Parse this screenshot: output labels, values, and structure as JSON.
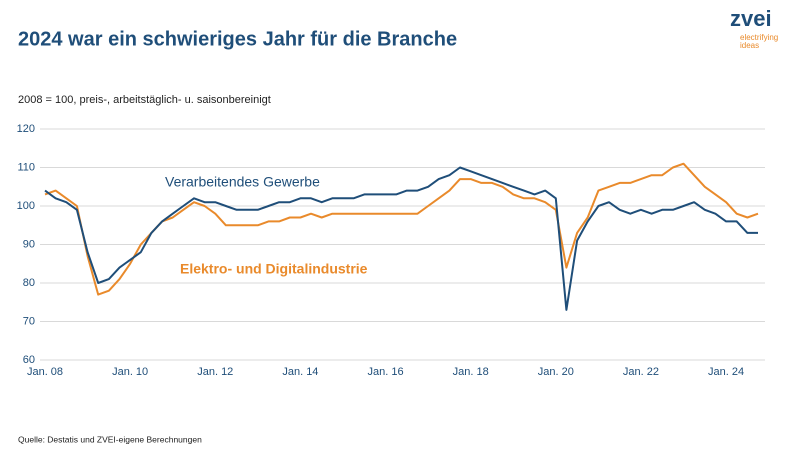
{
  "logo": {
    "name": "zvei",
    "tagline": [
      "electrifying",
      "ideas"
    ]
  },
  "chart_data": {
    "type": "line",
    "title": "2024 war ein schwieriges Jahr für die Branche",
    "subtitle": "2008 = 100, preis-, arbeitstäglich- u. saisonbereinigt",
    "source": "Quelle: Destatis und ZVEI-eigene Berechnungen",
    "categories": [
      "Jan. 08",
      null,
      null,
      null,
      null,
      null,
      null,
      null,
      "Jan. 10",
      null,
      null,
      null,
      null,
      null,
      null,
      null,
      "Jan. 12",
      null,
      null,
      null,
      null,
      null,
      null,
      null,
      "Jan. 14",
      null,
      null,
      null,
      null,
      null,
      null,
      null,
      "Jan. 16",
      null,
      null,
      null,
      null,
      null,
      null,
      null,
      "Jan. 18",
      null,
      null,
      null,
      null,
      null,
      null,
      null,
      "Jan. 20",
      null,
      null,
      null,
      null,
      null,
      null,
      null,
      "Jan. 22",
      null,
      null,
      null,
      null,
      null,
      null,
      null,
      "Jan. 24",
      null,
      null,
      null
    ],
    "series": [
      {
        "name": "Verarbeitendes Gewerbe",
        "color": "#1f4e79",
        "values": [
          104,
          102,
          101,
          99,
          88,
          80,
          81,
          84,
          86,
          88,
          93,
          96,
          98,
          100,
          102,
          101,
          101,
          100,
          99,
          99,
          99,
          100,
          101,
          101,
          102,
          102,
          101,
          102,
          102,
          102,
          103,
          103,
          103,
          103,
          104,
          104,
          105,
          107,
          108,
          110,
          109,
          108,
          107,
          106,
          105,
          104,
          103,
          104,
          102,
          73,
          91,
          96,
          100,
          101,
          99,
          98,
          99,
          98,
          99,
          99,
          100,
          101,
          99,
          98,
          96,
          96,
          93,
          93
        ]
      },
      {
        "name": "Elektro- und Digitalindustrie",
        "color": "#e98a2b",
        "values": [
          103,
          104,
          102,
          100,
          87,
          77,
          78,
          81,
          85,
          90,
          93,
          96,
          97,
          99,
          101,
          100,
          98,
          95,
          95,
          95,
          95,
          96,
          96,
          97,
          97,
          98,
          97,
          98,
          98,
          98,
          98,
          98,
          98,
          98,
          98,
          98,
          100,
          102,
          104,
          107,
          107,
          106,
          106,
          105,
          103,
          102,
          102,
          101,
          99,
          84,
          93,
          97,
          104,
          105,
          106,
          106,
          107,
          108,
          108,
          110,
          111,
          108,
          105,
          103,
          101,
          98,
          97,
          98
        ]
      }
    ],
    "ylim": [
      60,
      120
    ],
    "yticks": [
      60,
      70,
      80,
      90,
      100,
      110,
      120
    ],
    "grid": true
  }
}
